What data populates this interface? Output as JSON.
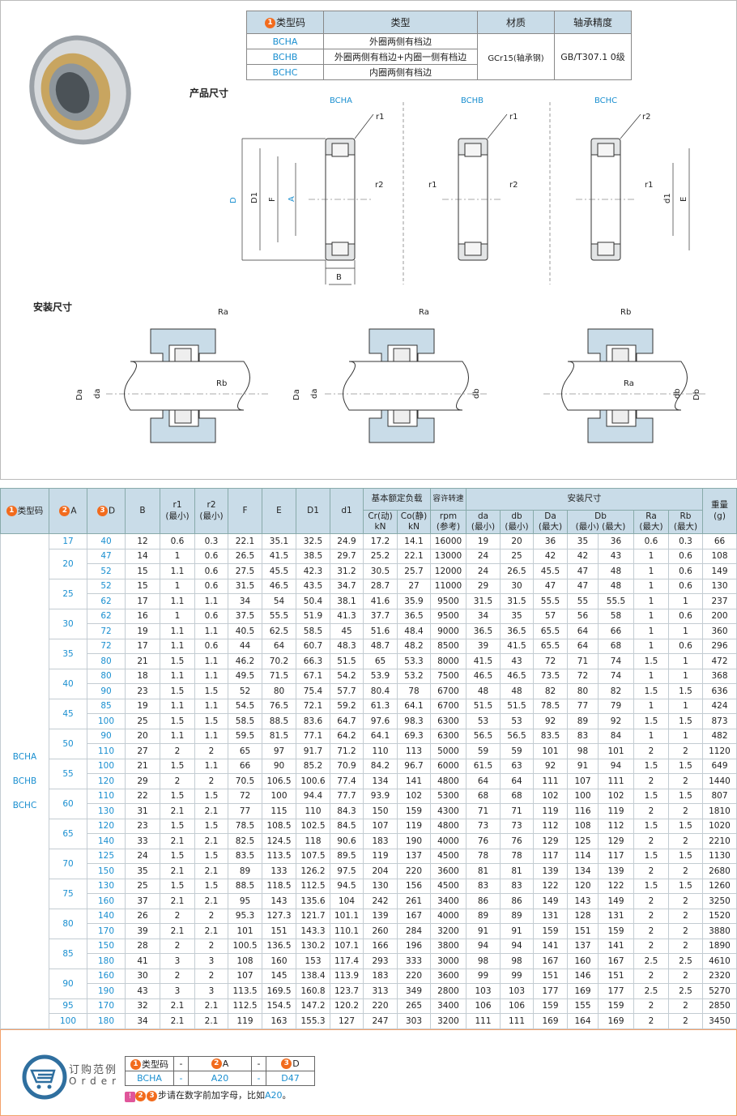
{
  "spec_table": {
    "headers": [
      "类型码",
      "类型",
      "材质",
      "轴承精度"
    ],
    "header_num": "1",
    "rows": [
      {
        "code": "BCHA",
        "type": "外圈两侧有档边"
      },
      {
        "code": "BCHB",
        "type": "外圈两侧有档边+内圈一侧有档边"
      },
      {
        "code": "BCHC",
        "type": "内圈两侧有档边"
      }
    ],
    "material": "GCr15(轴承钢)",
    "precision": "GB/T307.1 0级"
  },
  "product_dim": {
    "title": "产品尺寸",
    "views": [
      "BCHA",
      "BCHB",
      "BCHC"
    ],
    "labels": {
      "r1": "r1",
      "r2": "r2",
      "D": "D",
      "D1": "D1",
      "F": "F",
      "A": "A",
      "B": "B",
      "d1": "d1",
      "E": "E",
      "num2": "2",
      "num3": "3"
    }
  },
  "install_dim": {
    "title": "安装尺寸",
    "labels": {
      "Ra": "Ra",
      "Rb": "Rb",
      "Da": "Da",
      "da": "da",
      "db": "db",
      "Db": "Db"
    }
  },
  "main_table": {
    "h": {
      "type": "类型码",
      "A": "A",
      "D": "D",
      "B": "B",
      "r1": "r1",
      "r2": "r2",
      "min": "(最小)",
      "max": "(最大)",
      "F": "F",
      "E": "E",
      "D1": "D1",
      "d1": "d1",
      "load": "基本额定负载",
      "cr": "Cr(动)",
      "co": "Co(静)",
      "kn": "kN",
      "speed": "容许转速",
      "rpm": "rpm",
      "ref": "(参考)",
      "install": "安装尺寸",
      "da": "da",
      "db": "db",
      "Da": "Da",
      "Db": "Db",
      "Ra": "Ra",
      "Rb": "Rb",
      "weight": "重量",
      "g": "(g)"
    },
    "types": [
      "BCHA",
      "BCHB",
      "BCHC"
    ],
    "rows": [
      [
        17,
        40,
        12,
        0.6,
        0.3,
        22.1,
        35.1,
        32.5,
        24.9,
        17.2,
        14.1,
        16000,
        19,
        20,
        36,
        35,
        36,
        0.6,
        0.3,
        66
      ],
      [
        20,
        47,
        14,
        1,
        0.6,
        26.5,
        41.5,
        38.5,
        29.7,
        25.2,
        22.1,
        13000,
        24,
        25,
        42,
        42,
        43,
        1,
        0.6,
        108
      ],
      [
        20,
        52,
        15,
        1.1,
        0.6,
        27.5,
        45.5,
        42.3,
        31.2,
        30.5,
        25.7,
        12000,
        24,
        26.5,
        45.5,
        47,
        48,
        1,
        0.6,
        149
      ],
      [
        25,
        52,
        15,
        1,
        0.6,
        31.5,
        46.5,
        43.5,
        34.7,
        28.7,
        27,
        11000,
        29,
        30,
        47,
        47,
        48,
        1,
        0.6,
        130
      ],
      [
        25,
        62,
        17,
        1.1,
        1.1,
        34,
        54,
        50.4,
        38.1,
        41.6,
        35.9,
        9500,
        31.5,
        31.5,
        55.5,
        55,
        55.5,
        1,
        1,
        237
      ],
      [
        30,
        62,
        16,
        1,
        0.6,
        37.5,
        55.5,
        51.9,
        41.3,
        37.7,
        36.5,
        9500,
        34,
        35,
        57,
        56,
        58,
        1,
        0.6,
        200
      ],
      [
        30,
        72,
        19,
        1.1,
        1.1,
        40.5,
        62.5,
        58.5,
        45,
        51.6,
        48.4,
        9000,
        36.5,
        36.5,
        65.5,
        64,
        66,
        1,
        1,
        360
      ],
      [
        35,
        72,
        17,
        1.1,
        0.6,
        44,
        64,
        60.7,
        48.3,
        48.7,
        48.2,
        8500,
        39,
        41.5,
        65.5,
        64,
        68,
        1,
        0.6,
        296
      ],
      [
        35,
        80,
        21,
        1.5,
        1.1,
        46.2,
        70.2,
        66.3,
        51.5,
        65,
        53.3,
        8000,
        41.5,
        43,
        72,
        71,
        74,
        1.5,
        1,
        472
      ],
      [
        40,
        80,
        18,
        1.1,
        1.1,
        49.5,
        71.5,
        67.1,
        54.2,
        53.9,
        53.2,
        7500,
        46.5,
        46.5,
        73.5,
        72,
        74,
        1,
        1,
        368
      ],
      [
        40,
        90,
        23,
        1.5,
        1.5,
        52,
        80,
        75.4,
        57.7,
        80.4,
        78,
        6700,
        48,
        48,
        82,
        80,
        82,
        1.5,
        1.5,
        636
      ],
      [
        45,
        85,
        19,
        1.1,
        1.1,
        54.5,
        76.5,
        72.1,
        59.2,
        61.3,
        64.1,
        6700,
        51.5,
        51.5,
        78.5,
        77,
        79,
        1,
        1,
        424
      ],
      [
        45,
        100,
        25,
        1.5,
        1.5,
        58.5,
        88.5,
        83.6,
        64.7,
        97.6,
        98.3,
        6300,
        53,
        53,
        92,
        89,
        92,
        1.5,
        1.5,
        873
      ],
      [
        50,
        90,
        20,
        1.1,
        1.1,
        59.5,
        81.5,
        77.1,
        64.2,
        64.1,
        69.3,
        6300,
        56.5,
        56.5,
        83.5,
        83,
        84,
        1,
        1,
        482
      ],
      [
        50,
        110,
        27,
        2,
        2,
        65,
        97,
        91.7,
        71.2,
        110,
        113,
        5000,
        59,
        59,
        101,
        98,
        101,
        2,
        2,
        1120
      ],
      [
        55,
        100,
        21,
        1.5,
        1.1,
        66,
        90,
        85.2,
        70.9,
        84.2,
        96.7,
        6000,
        61.5,
        63,
        92,
        91,
        94,
        1.5,
        1.5,
        649
      ],
      [
        55,
        120,
        29,
        2,
        2,
        70.5,
        106.5,
        100.6,
        77.4,
        134,
        141,
        4800,
        64,
        64,
        111,
        107,
        111,
        2,
        2,
        1440
      ],
      [
        60,
        110,
        22,
        1.5,
        1.5,
        72,
        100,
        94.4,
        77.7,
        93.9,
        102,
        5300,
        68,
        68,
        102,
        100,
        102,
        1.5,
        1.5,
        807
      ],
      [
        60,
        130,
        31,
        2.1,
        2.1,
        77,
        115,
        110,
        84.3,
        150,
        159,
        4300,
        71,
        71,
        119,
        116,
        119,
        2,
        2,
        1810
      ],
      [
        65,
        120,
        23,
        1.5,
        1.5,
        78.5,
        108.5,
        102.5,
        84.5,
        107,
        119,
        4800,
        73,
        73,
        112,
        108,
        112,
        1.5,
        1.5,
        1020
      ],
      [
        65,
        140,
        33,
        2.1,
        2.1,
        82.5,
        124.5,
        118,
        90.6,
        183,
        190,
        4000,
        76,
        76,
        129,
        125,
        129,
        2,
        2,
        2210
      ],
      [
        70,
        125,
        24,
        1.5,
        1.5,
        83.5,
        113.5,
        107.5,
        89.5,
        119,
        137,
        4500,
        78,
        78,
        117,
        114,
        117,
        1.5,
        1.5,
        1130
      ],
      [
        70,
        150,
        35,
        2.1,
        2.1,
        89,
        133,
        126.2,
        97.5,
        204,
        220,
        3600,
        81,
        81,
        139,
        134,
        139,
        2,
        2,
        2680
      ],
      [
        75,
        130,
        25,
        1.5,
        1.5,
        88.5,
        118.5,
        112.5,
        94.5,
        130,
        156,
        4500,
        83,
        83,
        122,
        120,
        122,
        1.5,
        1.5,
        1260
      ],
      [
        75,
        160,
        37,
        2.1,
        2.1,
        95,
        143,
        135.6,
        104,
        242,
        261,
        3400,
        86,
        86,
        149,
        143,
        149,
        2,
        2,
        3250
      ],
      [
        80,
        140,
        26,
        2,
        2,
        95.3,
        127.3,
        121.7,
        101.1,
        139,
        167,
        4000,
        89,
        89,
        131,
        128,
        131,
        2,
        2,
        1520
      ],
      [
        80,
        170,
        39,
        2.1,
        2.1,
        101,
        151,
        143.3,
        110.1,
        260,
        284,
        3200,
        91,
        91,
        159,
        151,
        159,
        2,
        2,
        3880
      ],
      [
        85,
        150,
        28,
        2,
        2,
        100.5,
        136.5,
        130.2,
        107.1,
        166,
        196,
        3800,
        94,
        94,
        141,
        137,
        141,
        2,
        2,
        1890
      ],
      [
        85,
        180,
        41,
        3,
        3,
        108,
        160,
        153,
        117.4,
        293,
        333,
        3000,
        98,
        98,
        167,
        160,
        167,
        2.5,
        2.5,
        4610
      ],
      [
        90,
        160,
        30,
        2,
        2,
        107,
        145,
        138.4,
        113.9,
        183,
        220,
        3600,
        99,
        99,
        151,
        146,
        151,
        2,
        2,
        2320
      ],
      [
        90,
        190,
        43,
        3,
        3,
        113.5,
        169.5,
        160.8,
        123.7,
        313,
        349,
        2800,
        103,
        103,
        177,
        169,
        177,
        2.5,
        2.5,
        5270
      ],
      [
        95,
        170,
        32,
        2.1,
        2.1,
        112.5,
        154.5,
        147.2,
        120.2,
        220,
        265,
        3400,
        106,
        106,
        159,
        155,
        159,
        2,
        2,
        2850
      ],
      [
        100,
        180,
        34,
        2.1,
        2.1,
        119,
        163,
        155.3,
        127,
        247,
        303,
        3200,
        111,
        111,
        169,
        164,
        169,
        2,
        2,
        3450
      ]
    ]
  },
  "order": {
    "title_cn": "订购范例",
    "title_en": "Order",
    "h": [
      "类型码",
      "-",
      "A",
      "-",
      "D"
    ],
    "v": [
      "BCHA",
      "-",
      "A20",
      "-",
      "D47"
    ],
    "note": "步请在数字前加字母，比如",
    "note_ex": "A20",
    "note_end": "。",
    "colors": {
      "accent": "#f26b1d",
      "blue": "#1a8fd0",
      "icon": "#2f6f9f"
    }
  }
}
